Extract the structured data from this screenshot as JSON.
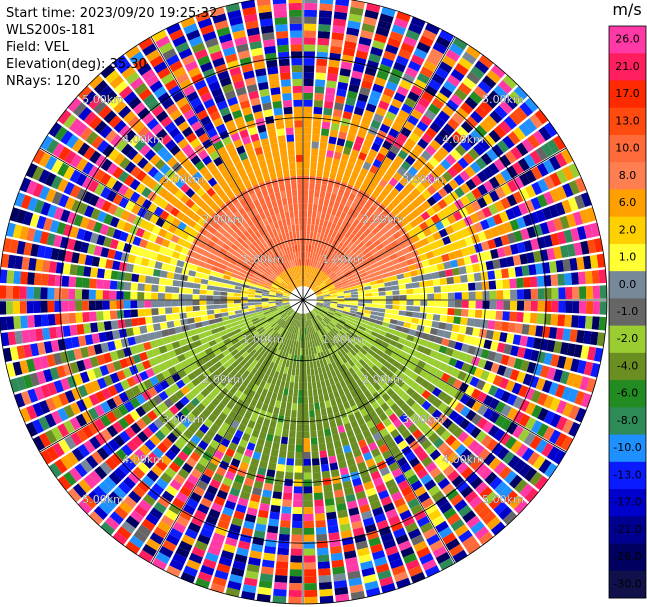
{
  "header": {
    "start_time": "Start time: 2023/09/20 19:25:32",
    "instrument": "WLS200s-181",
    "field": "Field: VEL",
    "elevation": "Elevation(deg): 35.30",
    "nrays": "NRays: 120"
  },
  "chart_data": {
    "type": "heatmap",
    "projection": "polar-ppi",
    "field": "VEL",
    "units": "m/s",
    "n_rays": 120,
    "elevation_deg": 35.3,
    "max_range_km": 5.0,
    "range_rings_km": [
      1,
      2,
      3,
      4,
      5
    ],
    "range_ring_labels": [
      "1.00km",
      "2.00km",
      "3.00km",
      "4.00km",
      "5.00km"
    ],
    "colorbar": {
      "unit_label": "m/s",
      "tick_labels": [
        "26.0",
        "21.0",
        "17.0",
        "13.0",
        "10.0",
        "8.0",
        "6.0",
        "2.0",
        "1.0",
        "0.0",
        "-1.0",
        "-2.0",
        "-4.0",
        "-6.0",
        "-8.0",
        "-10.0",
        "-13.0",
        "-17.0",
        "-21.0",
        "-26.0",
        "-30.0"
      ],
      "colors": [
        "#ff3aa6",
        "#ff1f5e",
        "#ff2a00",
        "#ff4a10",
        "#ff6a3a",
        "#ff7f50",
        "#ffa000",
        "#ffd000",
        "#ffff33",
        "#778899",
        "#666666",
        "#9acd32",
        "#6b8e23",
        "#228b22",
        "#2e8b57",
        "#1e90ff",
        "#0a1cff",
        "#0000cd",
        "#000090",
        "#000060",
        "#10104a"
      ]
    },
    "pattern_summary": {
      "near_field_0_1.5km": "approaching (negative, green/olive) to the south, receding (positive, yellow/orange) to the north, near-zero (gray) along east-west",
      "far_field_beyond_3km": "noise (all colors)"
    }
  }
}
